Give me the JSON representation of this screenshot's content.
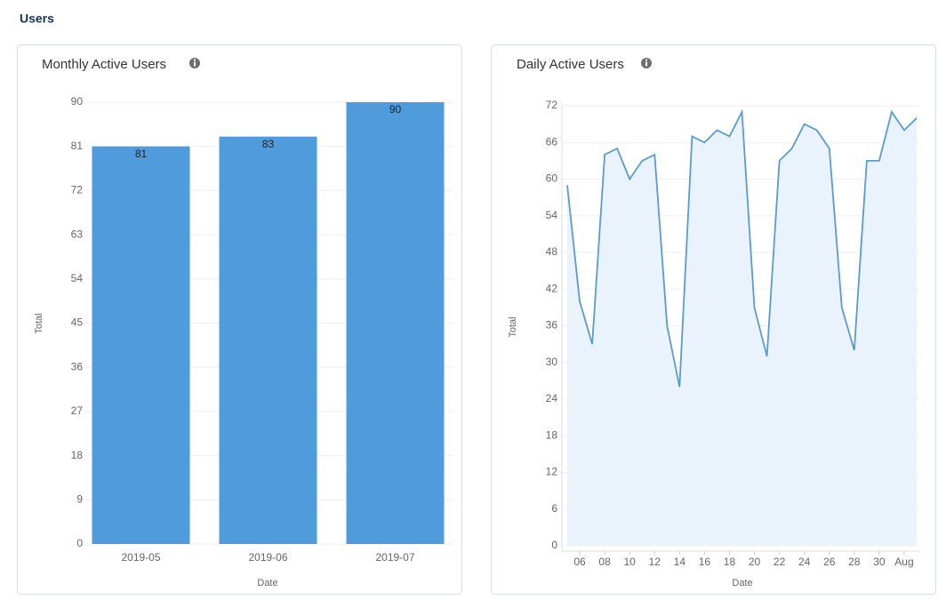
{
  "header": {
    "title": "Users"
  },
  "chart_data": [
    {
      "type": "bar",
      "title": "Monthly Active Users",
      "x_label": "Date",
      "y_label": "Total",
      "categories": [
        "2019-05",
        "2019-06",
        "2019-07"
      ],
      "values": [
        81,
        83,
        90
      ],
      "color": "#4f9bdc",
      "ylim": [
        0,
        90
      ],
      "yticks": [
        0,
        9,
        18,
        27,
        36,
        45,
        54,
        63,
        72,
        81,
        90
      ],
      "grid": true,
      "value_labels_shown": true
    },
    {
      "type": "line",
      "title": "Daily Active Users",
      "x_label": "Date",
      "y_label": "Total",
      "categories": [
        null,
        "06",
        null,
        "08",
        null,
        "10",
        null,
        "12",
        null,
        "14",
        null,
        "16",
        null,
        "18",
        null,
        "20",
        null,
        "22",
        null,
        "24",
        null,
        "26",
        null,
        "28",
        null,
        "30",
        null,
        "Aug",
        null
      ],
      "values": [
        59,
        40,
        33,
        64,
        65,
        60,
        63,
        64,
        36,
        26,
        67,
        66,
        68,
        67,
        71,
        39,
        31,
        63,
        65,
        69,
        68,
        65,
        39,
        32,
        63,
        63,
        71,
        68,
        70
      ],
      "color": "#5a9ccc",
      "area_color": "#eaf3fb",
      "ylim": [
        0,
        72
      ],
      "yticks": [
        0,
        6,
        12,
        18,
        24,
        30,
        36,
        42,
        48,
        54,
        60,
        66,
        72
      ],
      "grid": true
    }
  ]
}
